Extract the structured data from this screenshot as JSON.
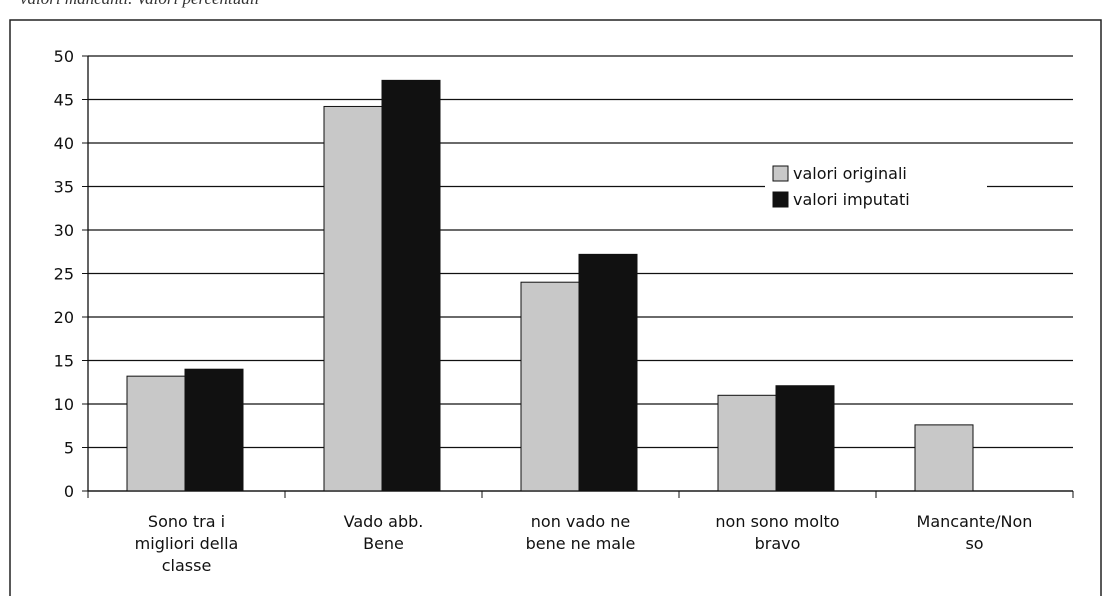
{
  "chart_data": {
    "type": "bar",
    "caption": "valori mancanti. Valori percentuali",
    "categories": [
      "Sono tra i\nmigliori della\nclasse",
      "Vado abb.\nBene",
      "non vado ne\nbene ne male",
      "non sono molto\nbravo",
      "Mancante/Non\nso"
    ],
    "series": [
      {
        "name": "valori originali",
        "color": "#c8c8c8",
        "values": [
          13.2,
          44.2,
          24,
          11,
          7.6
        ]
      },
      {
        "name": "valori imputati",
        "color": "#111111",
        "values": [
          14,
          47.2,
          27.2,
          12.1,
          null
        ]
      }
    ],
    "ylim": [
      0,
      50
    ],
    "yticks": [
      0,
      5,
      10,
      15,
      20,
      25,
      30,
      35,
      40,
      45,
      50
    ],
    "grid": true,
    "legend": "upper right"
  }
}
